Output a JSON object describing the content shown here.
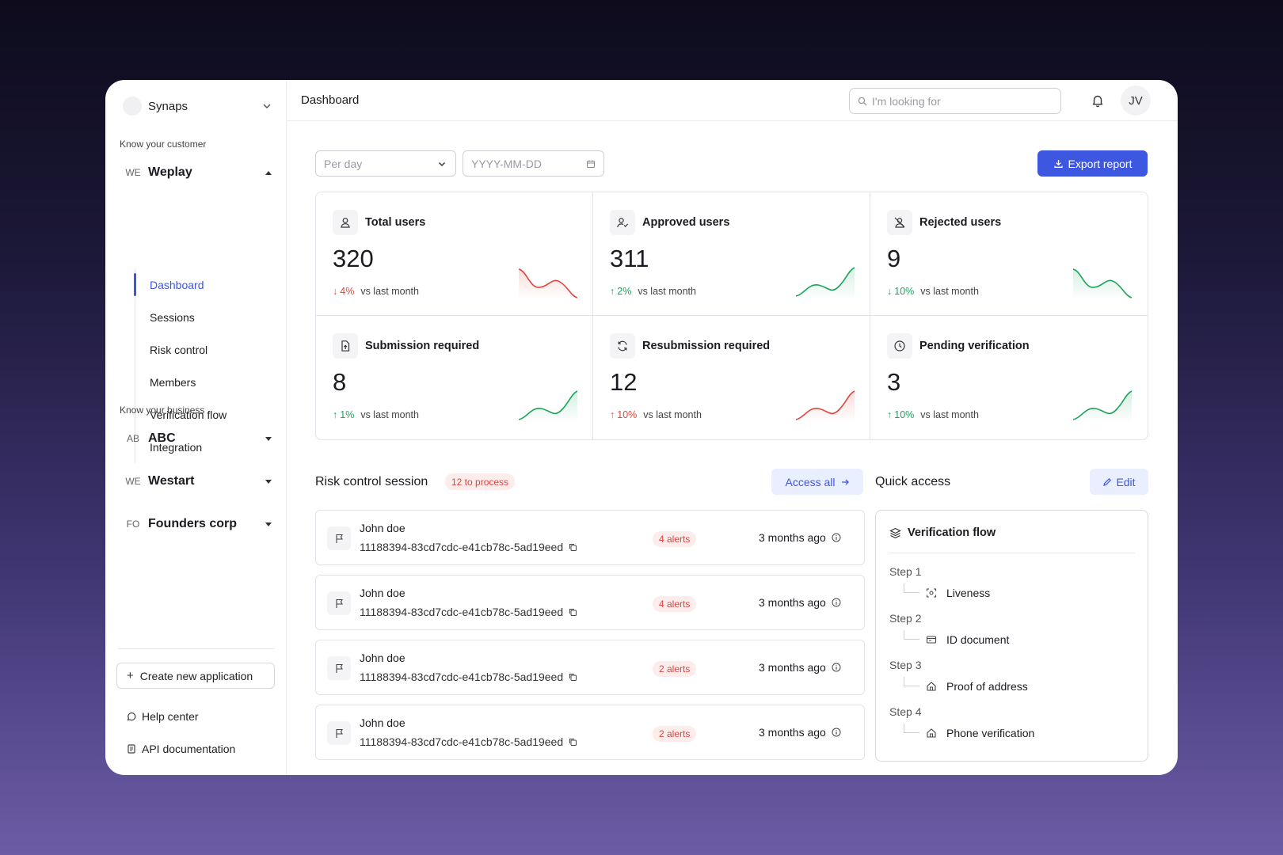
{
  "sidebar": {
    "org_name": "Synaps",
    "kyc_label": "Know your customer",
    "kyb_label": "Know your business",
    "workspaces": [
      {
        "abbr": "WE",
        "name": "Weplay"
      },
      {
        "abbr": "AB",
        "name": "ABC"
      },
      {
        "abbr": "WE",
        "name": "Westart"
      },
      {
        "abbr": "FO",
        "name": "Founders corp"
      }
    ],
    "nav": [
      "Dashboard",
      "Sessions",
      "Risk control",
      "Members",
      "Verification flow",
      "Integration"
    ],
    "create_label": "Create new application",
    "help_label": "Help center",
    "api_label": "API documentation"
  },
  "header": {
    "title": "Dashboard",
    "search_placeholder": "I'm looking for",
    "avatar_initials": "JV"
  },
  "filters": {
    "period_placeholder": "Per day",
    "date_placeholder": "YYYY-MM-DD",
    "export_label": "Export report"
  },
  "stats": [
    {
      "label": "Total users",
      "value": "320",
      "direction": "down",
      "pct": "4%",
      "vs": "vs last month",
      "icon": "user-icon"
    },
    {
      "label": "Approved users",
      "value": "311",
      "direction": "up",
      "pct": "2%",
      "vs": "vs last month",
      "icon": "user-check-icon"
    },
    {
      "label": "Rejected users",
      "value": "9",
      "direction": "down",
      "pct": "10%",
      "vs": "vs last month",
      "icon": "user-x-icon"
    },
    {
      "label": "Submission required",
      "value": "8",
      "direction": "up",
      "pct": "1%",
      "vs": "vs last month",
      "icon": "file-upload-icon"
    },
    {
      "label": "Resubmission required",
      "value": "12",
      "direction": "up",
      "pct": "10%",
      "vs": "vs last month",
      "icon": "refresh-icon"
    },
    {
      "label": "Pending verification",
      "value": "3",
      "direction": "up",
      "pct": "10%",
      "vs": "vs last month",
      "icon": "clock-icon"
    }
  ],
  "risk": {
    "title": "Risk control session",
    "badge": "12 to process",
    "access_label": "Access all",
    "rows": [
      {
        "name": "John doe",
        "id": "11188394-83cd7cdc-e41cb78c-5ad19eed",
        "alerts": "4 alerts",
        "time": "3 months ago"
      },
      {
        "name": "John doe",
        "id": "11188394-83cd7cdc-e41cb78c-5ad19eed",
        "alerts": "4 alerts",
        "time": "3 months ago"
      },
      {
        "name": "John doe",
        "id": "11188394-83cd7cdc-e41cb78c-5ad19eed",
        "alerts": "2 alerts",
        "time": "3 months ago"
      },
      {
        "name": "John doe",
        "id": "11188394-83cd7cdc-e41cb78c-5ad19eed",
        "alerts": "2 alerts",
        "time": "3 months ago"
      }
    ]
  },
  "quick_access": {
    "title": "Quick access",
    "edit_label": "Edit",
    "card_title": "Verification flow",
    "steps": [
      {
        "label": "Step 1",
        "item": "Liveness"
      },
      {
        "label": "Step 2",
        "item": "ID document"
      },
      {
        "label": "Step 3",
        "item": "Proof of address"
      },
      {
        "label": "Step 4",
        "item": "Phone verification"
      }
    ]
  },
  "colors": {
    "accent": "#3d57e0",
    "up": "#1aa35a",
    "down": "#e0443c"
  }
}
